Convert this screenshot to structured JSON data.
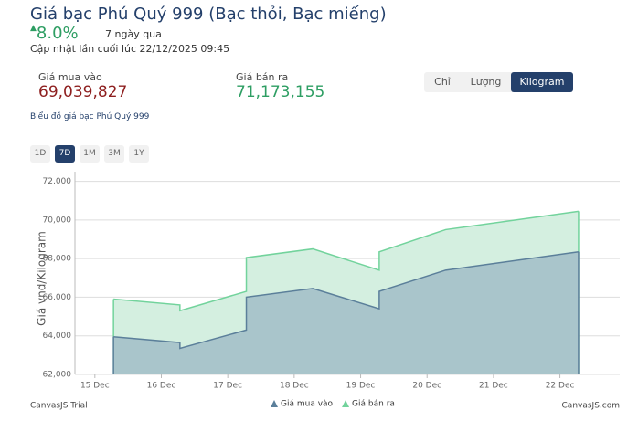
{
  "header": {
    "title": "Giá bạc Phú Quý 999 (Bạc thỏi, Bạc miếng)",
    "change": "8.0%",
    "period": "7 ngày qua",
    "updated": "Cập nhật lần cuối lúc 22/12/2025 09:45",
    "buy_label": "Giá mua vào",
    "buy_price": "69,039,827",
    "sell_label": "Giá bán ra",
    "sell_price": "71,173,155",
    "units": [
      "Chỉ",
      "Lượng",
      "Kilogram"
    ],
    "chart_caption": "Biểu đồ giá bạc Phú Quý 999",
    "ranges": [
      "1D",
      "7D",
      "1M",
      "3M",
      "1Y"
    ]
  },
  "chart_data": {
    "type": "area",
    "y_label": "Giá vnd/Kilogram",
    "x": [
      15.28,
      16.28,
      16.28,
      17.28,
      17.28,
      18.28,
      19.28,
      19.28,
      20.28,
      22.28
    ],
    "xlim": [
      14.7,
      22.9
    ],
    "xticks": [
      {
        "value": 15,
        "label": "15 Dec"
      },
      {
        "value": 16,
        "label": "16 Dec"
      },
      {
        "value": 17,
        "label": "17 Dec"
      },
      {
        "value": 18,
        "label": "18 Dec"
      },
      {
        "value": 19,
        "label": "19 Dec"
      },
      {
        "value": 20,
        "label": "20 Dec"
      },
      {
        "value": 21,
        "label": "21 Dec"
      },
      {
        "value": 22,
        "label": "22 Dec"
      }
    ],
    "ylim": [
      62000,
      72500
    ],
    "yticks": [
      {
        "value": 62000,
        "label": "62,000"
      },
      {
        "value": 64000,
        "label": "64,000"
      },
      {
        "value": 66000,
        "label": "66,000"
      },
      {
        "value": 68000,
        "label": "68,000"
      },
      {
        "value": 70000,
        "label": "70,000"
      },
      {
        "value": 72000,
        "label": "72,000"
      }
    ],
    "grid": true,
    "series": [
      {
        "name": "Giá mua vào",
        "color": "#5b7f9a",
        "fill": "#a9c5cb",
        "values": [
          63950,
          63650,
          63350,
          64300,
          66000,
          66450,
          65400,
          66300,
          67400,
          68350
        ]
      },
      {
        "name": "Giá bán ra",
        "color": "#72d39c",
        "fill": "#d4efe0",
        "values": [
          65900,
          65600,
          65300,
          66300,
          68050,
          68500,
          67400,
          68350,
          69500,
          70450
        ]
      }
    ],
    "watermark_left": "CanvasJS Trial",
    "watermark_right": "CanvasJS.com"
  }
}
